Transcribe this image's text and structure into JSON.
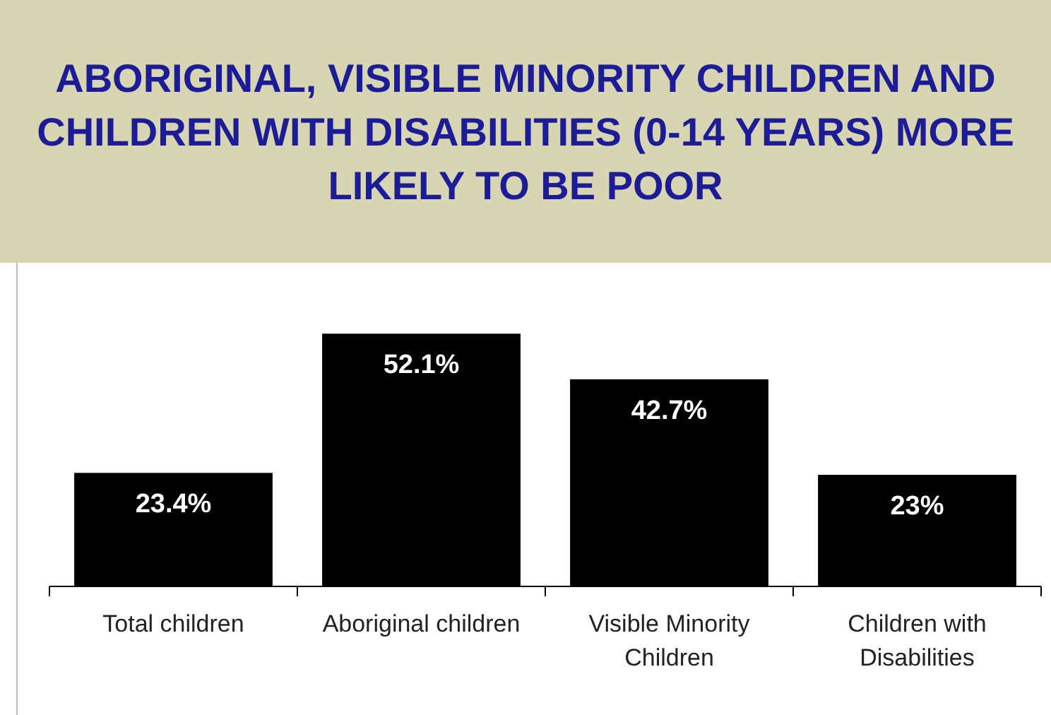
{
  "chart_data": {
    "type": "bar",
    "title": "ABORIGINAL, VISIBLE MINORITY CHILDREN AND CHILDREN WITH DISABILITIES (0-14 YEARS) MORE LIKELY TO BE POOR",
    "categories": [
      "Total children",
      "Aboriginal children",
      "Visible Minority Children",
      "Children with Disabilities"
    ],
    "values": [
      23.4,
      52.1,
      42.7,
      23
    ],
    "value_labels": [
      "23.4%",
      "52.1%",
      "42.7%",
      "23%"
    ],
    "color": "#000000"
  }
}
